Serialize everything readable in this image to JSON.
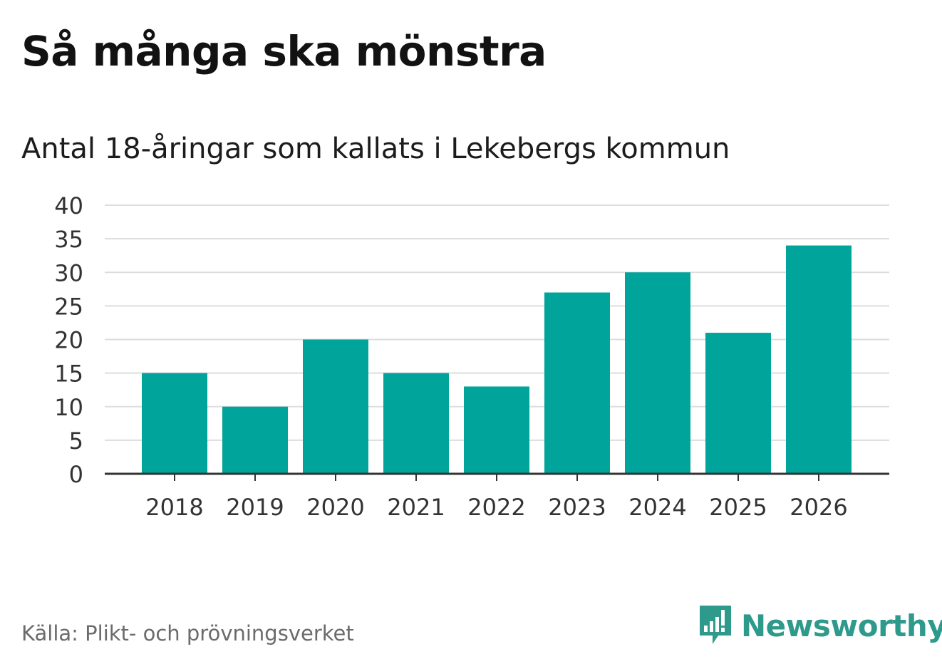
{
  "header": {
    "title": "Så många ska mönstra",
    "subtitle": "Antal 18-åringar som kallats i Lekebergs kommun"
  },
  "footer": {
    "source": "Källa: Plikt- och prövningsverket",
    "brand": "Newsworthy",
    "brand_icon": "newsworthy-logo-icon"
  },
  "colors": {
    "bar": "#00a49b",
    "grid": "#dddddd",
    "axis": "#333333",
    "brand": "#2e9a8b"
  },
  "chart_data": {
    "type": "bar",
    "title": "Så många ska mönstra",
    "subtitle": "Antal 18-åringar som kallats i Lekebergs kommun",
    "categories": [
      "2018",
      "2019",
      "2020",
      "2021",
      "2022",
      "2023",
      "2024",
      "2025",
      "2026"
    ],
    "values": [
      15,
      10,
      20,
      15,
      13,
      27,
      30,
      21,
      34
    ],
    "xlabel": "",
    "ylabel": "",
    "ylim": [
      0,
      40
    ],
    "yticks": [
      0,
      5,
      10,
      15,
      20,
      25,
      30,
      35,
      40
    ],
    "grid": true,
    "legend": "none"
  }
}
